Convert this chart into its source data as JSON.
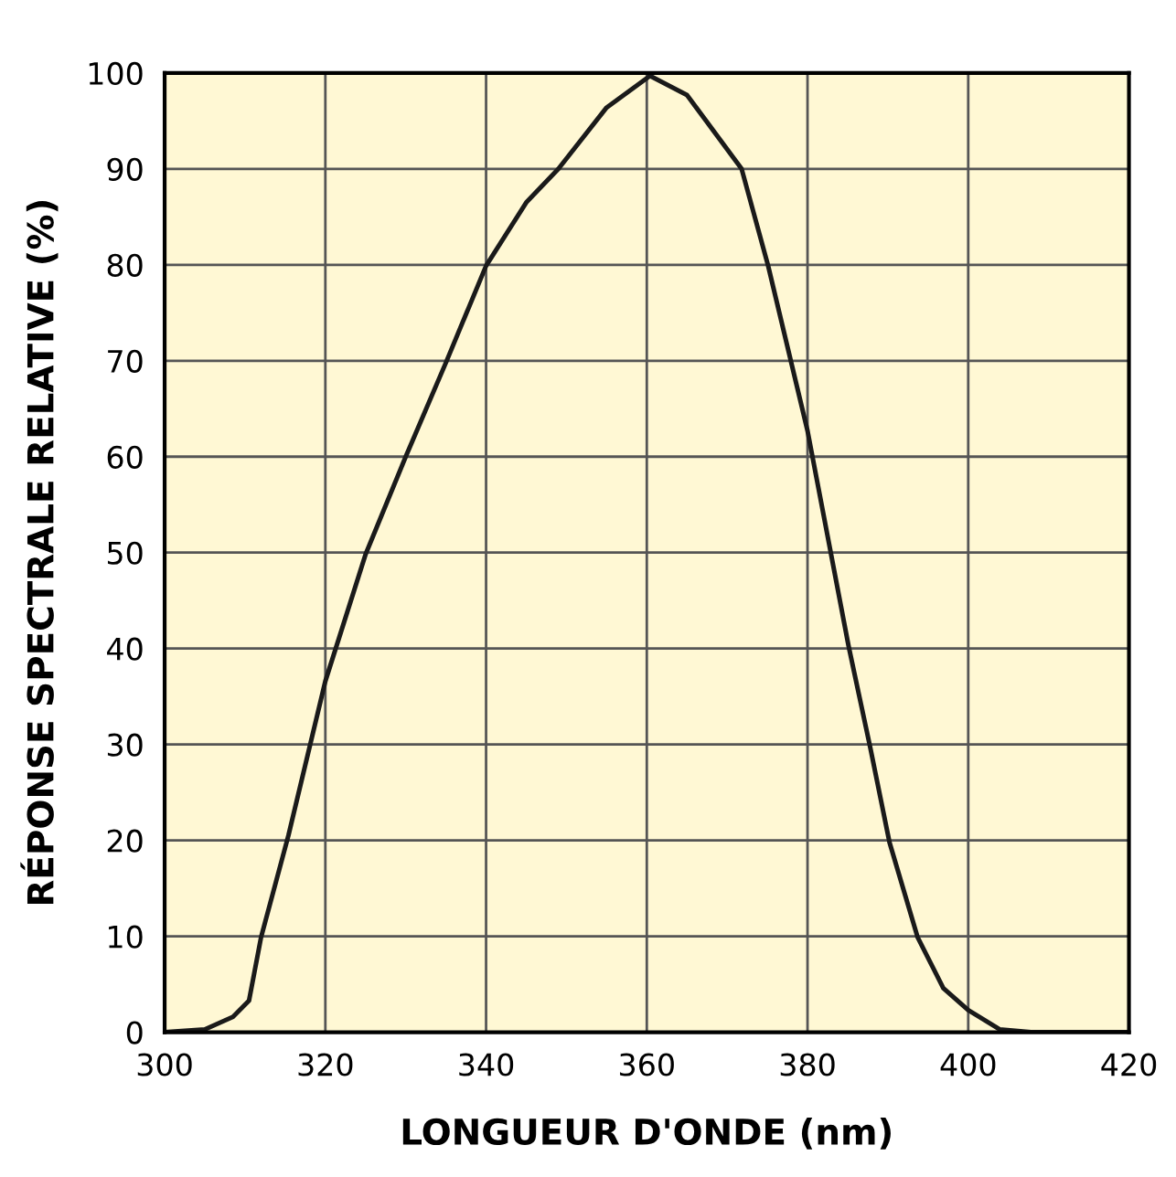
{
  "chart_data": {
    "type": "line",
    "xlabel": "LONGUEUR D'ONDE (nm)",
    "ylabel": "RÉPONSE SPECTRALE RELATIVE (%)",
    "x": [
      300,
      305,
      308.5,
      310.5,
      312,
      315.4,
      320,
      325,
      330,
      335,
      340,
      345,
      349,
      355,
      360.4,
      365,
      371.8,
      375.1,
      380,
      385.1,
      387.8,
      390.2,
      393.7,
      396.9,
      400,
      403.9,
      407.8,
      420
    ],
    "series": [
      {
        "color": "#1a1a1a",
        "values": [
          0,
          0.3,
          1.6,
          3.3,
          9.9,
          20.5,
          36.6,
          49.8,
          60,
          69.8,
          79.9,
          86.5,
          90,
          96.4,
          99.7,
          97.7,
          90,
          79.9,
          62.7,
          40.3,
          29.7,
          19.8,
          9.9,
          4.6,
          2.3,
          0.3,
          0,
          0
        ]
      }
    ],
    "xlim": [
      300,
      420
    ],
    "xticks": [
      300,
      320,
      340,
      360,
      380,
      400,
      420
    ],
    "ylim": [
      0,
      100
    ],
    "yticks": [
      0,
      10,
      20,
      30,
      40,
      50,
      60,
      70,
      80,
      90,
      100
    ],
    "grid": true,
    "line_style": "solid",
    "marker": "none"
  }
}
